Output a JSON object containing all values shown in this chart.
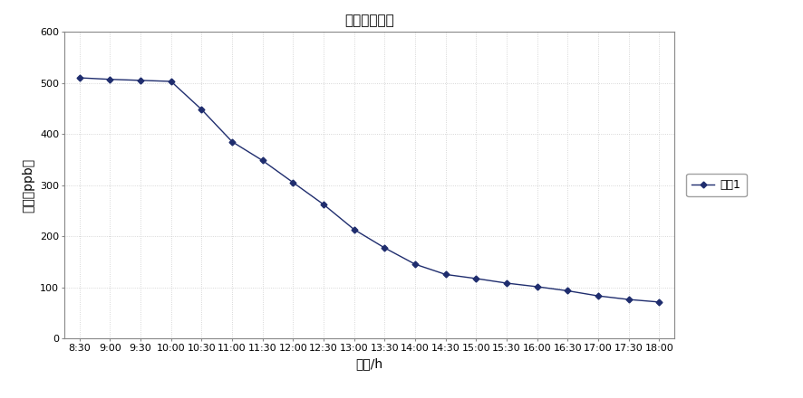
{
  "title": "甲醒降解曲线",
  "xlabel": "时间/h",
  "ylabel": "甲醒（ppb）",
  "legend_label": "系列1",
  "x_labels": [
    "8:30",
    "9:00",
    "9:30",
    "10:00",
    "10:30",
    "11:00",
    "11:30",
    "12:00",
    "12:30",
    "13:00",
    "13:30",
    "14:00",
    "14:30",
    "15:00",
    "15:30",
    "16:00",
    "16:30",
    "17:00",
    "17:30",
    "18:00"
  ],
  "y_values": [
    510,
    507,
    505,
    503,
    448,
    385,
    348,
    305,
    262,
    213,
    177,
    145,
    125,
    117,
    108,
    101,
    93,
    83,
    76,
    71
  ],
  "ylim": [
    0,
    600
  ],
  "yticks": [
    0,
    100,
    200,
    300,
    400,
    500,
    600
  ],
  "line_color": "#1f2d6e",
  "marker": "D",
  "marker_size": 3.5,
  "line_width": 1.0,
  "background_color": "#ffffff",
  "plot_bg_color": "#ffffff",
  "title_fontsize": 11,
  "axis_label_fontsize": 10,
  "tick_fontsize": 8,
  "legend_fontsize": 9
}
